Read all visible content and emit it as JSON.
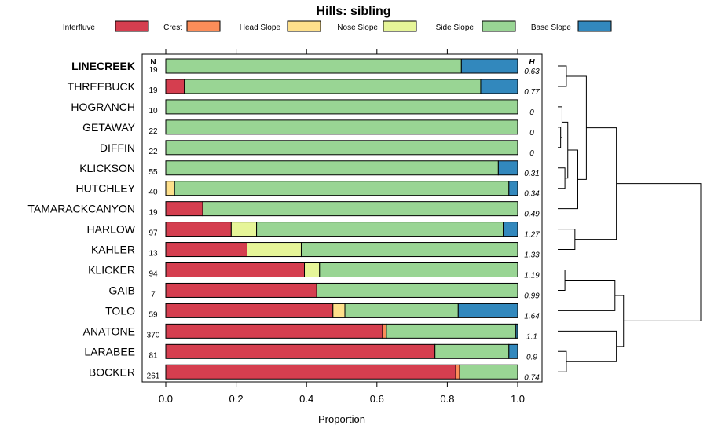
{
  "chart_data": {
    "type": "bar",
    "orientation": "horizontal",
    "stacked": true,
    "title": "Hills: sibling",
    "xlabel": "Proportion",
    "xlim": [
      0,
      1
    ],
    "xticks": [
      "0.0",
      "0.2",
      "0.4",
      "0.6",
      "0.8",
      "1.0"
    ],
    "n_header": "N",
    "h_header": "H",
    "highlighted_category": "LINECREEK",
    "series": [
      {
        "name": "Interfluve",
        "color": "#D53E4F"
      },
      {
        "name": "Crest",
        "color": "#FC8D59"
      },
      {
        "name": "Head Slope",
        "color": "#FEE08B"
      },
      {
        "name": "Nose Slope",
        "color": "#E6F598"
      },
      {
        "name": "Side Slope",
        "color": "#99D594"
      },
      {
        "name": "Base Slope",
        "color": "#3288BD"
      }
    ],
    "rows": [
      {
        "label": "LINECREEK",
        "n": "19",
        "h": "0.63",
        "values": [
          0,
          0,
          0,
          0,
          0.84,
          0.16
        ]
      },
      {
        "label": "THREEBUCK",
        "n": "19",
        "h": "0.77",
        "values": [
          0.053,
          0,
          0,
          0,
          0.842,
          0.105
        ]
      },
      {
        "label": "HOGRANCH",
        "n": "10",
        "h": "0",
        "values": [
          0,
          0,
          0,
          0,
          1.0,
          0
        ]
      },
      {
        "label": "GETAWAY",
        "n": "22",
        "h": "0",
        "values": [
          0,
          0,
          0,
          0,
          1.0,
          0
        ]
      },
      {
        "label": "DIFFIN",
        "n": "22",
        "h": "0",
        "values": [
          0,
          0,
          0,
          0,
          1.0,
          0
        ]
      },
      {
        "label": "KLICKSON",
        "n": "55",
        "h": "0.31",
        "values": [
          0,
          0,
          0,
          0,
          0.945,
          0.055
        ]
      },
      {
        "label": "HUTCHLEY",
        "n": "40",
        "h": "0.34",
        "values": [
          0,
          0,
          0.025,
          0,
          0.95,
          0.025
        ]
      },
      {
        "label": "TAMARACKCANYON",
        "n": "19",
        "h": "0.49",
        "values": [
          0.105,
          0,
          0,
          0,
          0.895,
          0
        ]
      },
      {
        "label": "HARLOW",
        "n": "97",
        "h": "1.27",
        "values": [
          0.186,
          0,
          0,
          0.072,
          0.701,
          0.041
        ]
      },
      {
        "label": "KAHLER",
        "n": "13",
        "h": "1.33",
        "values": [
          0.231,
          0,
          0,
          0.154,
          0.615,
          0
        ]
      },
      {
        "label": "KLICKER",
        "n": "94",
        "h": "1.19",
        "values": [
          0.394,
          0,
          0,
          0.043,
          0.563,
          0
        ]
      },
      {
        "label": "GAIB",
        "n": "7",
        "h": "0.99",
        "values": [
          0.429,
          0,
          0,
          0,
          0.571,
          0
        ]
      },
      {
        "label": "TOLO",
        "n": "59",
        "h": "1.64",
        "values": [
          0.475,
          0,
          0.034,
          0,
          0.322,
          0.169
        ]
      },
      {
        "label": "ANATONE",
        "n": "370",
        "h": "1.1",
        "values": [
          0.616,
          0.011,
          0,
          0,
          0.368,
          0.005
        ]
      },
      {
        "label": "LARABEE",
        "n": "81",
        "h": "0.9",
        "values": [
          0.765,
          0,
          0,
          0,
          0.21,
          0.025
        ]
      },
      {
        "label": "BOCKER",
        "n": "261",
        "h": "0.74",
        "values": [
          0.824,
          0.011,
          0,
          0,
          0.165,
          0
        ]
      }
    ],
    "dendrogram": {
      "note": "merge tree over rows (leaf indices), heights in relative dissimilarity units",
      "merges": [
        {
          "a": "L0",
          "b": "L1",
          "h": 0.06
        },
        {
          "a": "L3",
          "b": "L4",
          "h": 0.02
        },
        {
          "a": "L2",
          "b": "M1",
          "h": 0.03
        },
        {
          "a": "L5",
          "b": "L6",
          "h": 0.05
        },
        {
          "a": "M2",
          "b": "M3",
          "h": 0.07
        },
        {
          "a": "M4",
          "b": "L7",
          "h": 0.14
        },
        {
          "a": "M0",
          "b": "M5",
          "h": 0.2
        },
        {
          "a": "L8",
          "b": "L9",
          "h": 0.12
        },
        {
          "a": "M6",
          "b": "M7",
          "h": 0.41
        },
        {
          "a": "L10",
          "b": "L11",
          "h": 0.05
        },
        {
          "a": "M9",
          "b": "L12",
          "h": 0.4
        },
        {
          "a": "L14",
          "b": "L15",
          "h": 0.06
        },
        {
          "a": "L13",
          "b": "M11",
          "h": 0.41
        },
        {
          "a": "M10",
          "b": "M12",
          "h": 0.46
        },
        {
          "a": "M8",
          "b": "M13",
          "h": 1.0
        }
      ]
    }
  }
}
